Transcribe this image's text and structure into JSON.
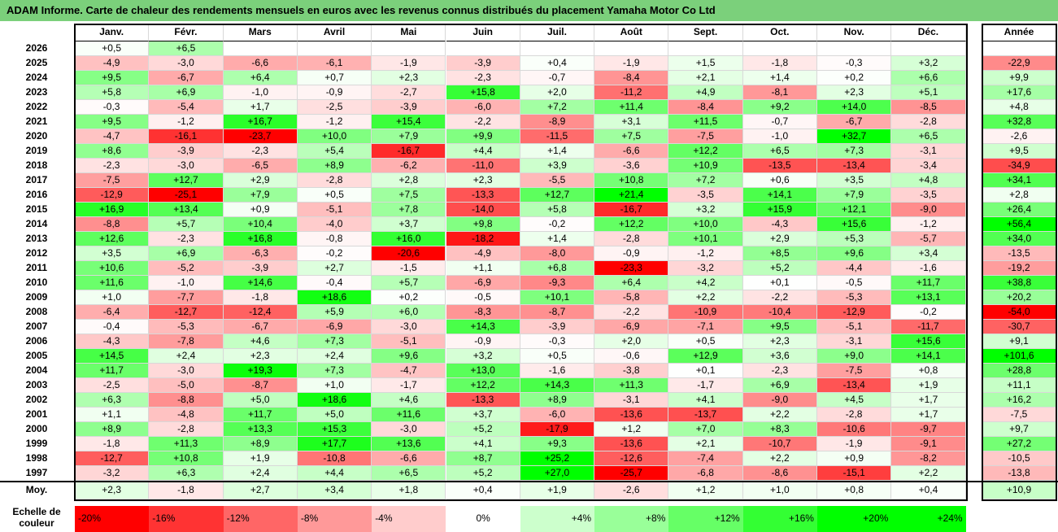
{
  "title": "ADAM Informe. Carte de chaleur des rendements mensuels en euros avec les revenus connus distribués du placement Yamaha Motor Co Ltd",
  "chart_data": {
    "type": "heatmap",
    "months": [
      "Janv.",
      "Févr.",
      "Mars",
      "Avril",
      "Mai",
      "Juin",
      "Juil.",
      "Août",
      "Sept.",
      "Oct.",
      "Nov.",
      "Déc."
    ],
    "year_label": "Année",
    "avg_label": "Moy.",
    "scale_label": "Echelle de couleur",
    "rows": [
      {
        "year": "2026",
        "values": [
          "+0,5",
          "+6,5",
          null,
          null,
          null,
          null,
          null,
          null,
          null,
          null,
          null,
          null
        ],
        "total": null
      },
      {
        "year": "2025",
        "values": [
          "-4,9",
          "-3,0",
          "-6,6",
          "-6,1",
          "-1,9",
          "-3,9",
          "+0,4",
          "-1,9",
          "+1,5",
          "-1,8",
          "-0,3",
          "+3,2"
        ],
        "total": "-22,9"
      },
      {
        "year": "2024",
        "values": [
          "+9,5",
          "-6,7",
          "+6,4",
          "+0,7",
          "+2,3",
          "-2,3",
          "-0,7",
          "-8,4",
          "+2,1",
          "+1,4",
          "+0,2",
          "+6,6"
        ],
        "total": "+9,9"
      },
      {
        "year": "2023",
        "values": [
          "+5,8",
          "+6,9",
          "-1,0",
          "-0,9",
          "-2,7",
          "+15,8",
          "+2,0",
          "-11,2",
          "+4,9",
          "-8,1",
          "+2,3",
          "+5,1"
        ],
        "total": "+17,6"
      },
      {
        "year": "2022",
        "values": [
          "-0,3",
          "-5,4",
          "+1,7",
          "-2,5",
          "-3,9",
          "-6,0",
          "+7,2",
          "+11,4",
          "-8,4",
          "+9,2",
          "+14,0",
          "-8,5"
        ],
        "total": "+4,8"
      },
      {
        "year": "2021",
        "values": [
          "+9,5",
          "-1,2",
          "+16,7",
          "-1,2",
          "+15,4",
          "-2,2",
          "-8,9",
          "+3,1",
          "+11,5",
          "-0,7",
          "-6,7",
          "-2,8"
        ],
        "total": "+32,8"
      },
      {
        "year": "2020",
        "values": [
          "-4,7",
          "-16,1",
          "-23,7",
          "+10,0",
          "+7,9",
          "+9,9",
          "-11,5",
          "+7,5",
          "-7,5",
          "-1,0",
          "+32,7",
          "+6,5"
        ],
        "total": "-2,6"
      },
      {
        "year": "2019",
        "values": [
          "+8,6",
          "-3,9",
          "-2,3",
          "+5,4",
          "-16,7",
          "+4,4",
          "+1,4",
          "-6,6",
          "+12,2",
          "+6,5",
          "+7,3",
          "-3,1"
        ],
        "total": "+9,5"
      },
      {
        "year": "2018",
        "values": [
          "-2,3",
          "-3,0",
          "-6,5",
          "+8,9",
          "-6,2",
          "-11,0",
          "+3,9",
          "-3,6",
          "+10,9",
          "-13,5",
          "-13,4",
          "-3,4"
        ],
        "total": "-34,9"
      },
      {
        "year": "2017",
        "values": [
          "-7,5",
          "+12,7",
          "+2,9",
          "-2,8",
          "+2,8",
          "+2,3",
          "-5,5",
          "+10,8",
          "+7,2",
          "+0,6",
          "+3,5",
          "+4,8"
        ],
        "total": "+34,1"
      },
      {
        "year": "2016",
        "values": [
          "-12,9",
          "-25,1",
          "+7,9",
          "+0,5",
          "+7,5",
          "-13,3",
          "+12,7",
          "+21,4",
          "-3,5",
          "+14,1",
          "+7,9",
          "-3,5"
        ],
        "total": "+2,8"
      },
      {
        "year": "2015",
        "values": [
          "+16,9",
          "+13,4",
          "+0,9",
          "-5,1",
          "+7,8",
          "-14,0",
          "+5,8",
          "-16,7",
          "+3,2",
          "+15,9",
          "+12,1",
          "-9,0"
        ],
        "total": "+26,4"
      },
      {
        "year": "2014",
        "values": [
          "-8,8",
          "+5,7",
          "+10,4",
          "-4,0",
          "+3,7",
          "+9,8",
          "-0,2",
          "+12,2",
          "+10,0",
          "-4,3",
          "+15,6",
          "-1,2"
        ],
        "total": "+56,4"
      },
      {
        "year": "2013",
        "values": [
          "+12,6",
          "-2,3",
          "+16,8",
          "-0,8",
          "+16,0",
          "-18,2",
          "+1,4",
          "-2,8",
          "+10,1",
          "+2,9",
          "+5,3",
          "-5,7"
        ],
        "total": "+34,0"
      },
      {
        "year": "2012",
        "values": [
          "+3,5",
          "+6,9",
          "-6,3",
          "-0,2",
          "-20,6",
          "-4,9",
          "-8,0",
          "-0,9",
          "-1,2",
          "+8,5",
          "+9,6",
          "+3,4"
        ],
        "total": "-13,5"
      },
      {
        "year": "2011",
        "values": [
          "+10,6",
          "-5,2",
          "-3,9",
          "+2,7",
          "-1,5",
          "+1,1",
          "+6,8",
          "-23,3",
          "-3,2",
          "+5,2",
          "-4,4",
          "-1,6"
        ],
        "total": "-19,2"
      },
      {
        "year": "2010",
        "values": [
          "+11,6",
          "-1,0",
          "+14,6",
          "-0,4",
          "+5,7",
          "-6,9",
          "-9,3",
          "+6,4",
          "+4,2",
          "+0,1",
          "-0,5",
          "+11,7"
        ],
        "total": "+38,8"
      },
      {
        "year": "2009",
        "values": [
          "+1,0",
          "-7,7",
          "-1,8",
          "+18,6",
          "+0,2",
          "-0,5",
          "+10,1",
          "-5,8",
          "+2,2",
          "-2,2",
          "-5,3",
          "+13,1"
        ],
        "total": "+20,2"
      },
      {
        "year": "2008",
        "values": [
          "-6,4",
          "-12,7",
          "-12,4",
          "+5,9",
          "+6,0",
          "-8,3",
          "-8,7",
          "-2,2",
          "-10,9",
          "-10,4",
          "-12,9",
          "-0,2"
        ],
        "total": "-54,0"
      },
      {
        "year": "2007",
        "values": [
          "-0,4",
          "-5,3",
          "-6,7",
          "-6,9",
          "-3,0",
          "+14,3",
          "-3,9",
          "-6,9",
          "-7,1",
          "+9,5",
          "-5,1",
          "-11,7"
        ],
        "total": "-30,7"
      },
      {
        "year": "2006",
        "values": [
          "-4,3",
          "-7,8",
          "+4,6",
          "+7,3",
          "-5,1",
          "-0,9",
          "-0,3",
          "+2,0",
          "+0,5",
          "+2,3",
          "-3,1",
          "+15,6"
        ],
        "total": "+9,1"
      },
      {
        "year": "2005",
        "values": [
          "+14,5",
          "+2,4",
          "+2,3",
          "+2,4",
          "+9,6",
          "+3,2",
          "+0,5",
          "-0,6",
          "+12,9",
          "+3,6",
          "+9,0",
          "+14,1"
        ],
        "total": "+101,6"
      },
      {
        "year": "2004",
        "values": [
          "+11,7",
          "-3,0",
          "+19,3",
          "+7,3",
          "-4,7",
          "+13,0",
          "-1,6",
          "-3,8",
          "+0,1",
          "-2,3",
          "-7,5",
          "+0,8"
        ],
        "total": "+28,8"
      },
      {
        "year": "2003",
        "values": [
          "-2,5",
          "-5,0",
          "-8,7",
          "+1,0",
          "-1,7",
          "+12,2",
          "+14,3",
          "+11,3",
          "-1,7",
          "+6,9",
          "-13,4",
          "+1,9"
        ],
        "total": "+11,1"
      },
      {
        "year": "2002",
        "values": [
          "+6,3",
          "-8,8",
          "+5,0",
          "+18,6",
          "+4,6",
          "-13,3",
          "+8,9",
          "-3,1",
          "+4,1",
          "-9,0",
          "+4,5",
          "+1,7"
        ],
        "total": "+16,2"
      },
      {
        "year": "2001",
        "values": [
          "+1,1",
          "-4,8",
          "+11,7",
          "+5,0",
          "+11,6",
          "+3,7",
          "-6,0",
          "-13,6",
          "-13,7",
          "+2,2",
          "-2,8",
          "+1,7"
        ],
        "total": "-7,5"
      },
      {
        "year": "2000",
        "values": [
          "+8,9",
          "-2,8",
          "+13,3",
          "+15,3",
          "-3,0",
          "+5,2",
          "-17,9",
          "+1,2",
          "+7,0",
          "+8,3",
          "-10,6",
          "-9,7"
        ],
        "total": "+9,7"
      },
      {
        "year": "1999",
        "values": [
          "-1,8",
          "+11,3",
          "+8,9",
          "+17,7",
          "+13,6",
          "+4,1",
          "+9,3",
          "-13,6",
          "+2,1",
          "-10,7",
          "-1,9",
          "-9,1"
        ],
        "total": "+27,2"
      },
      {
        "year": "1998",
        "values": [
          "-12,7",
          "+10,8",
          "+1,9",
          "-10,8",
          "-6,6",
          "+8,7",
          "+25,2",
          "-12,6",
          "-7,4",
          "+2,2",
          "+0,9",
          "-8,2"
        ],
        "total": "-10,5"
      },
      {
        "year": "1997",
        "values": [
          "-3,2",
          "+6,3",
          "+2,4",
          "+4,4",
          "+6,5",
          "+5,2",
          "+27,0",
          "-25,7",
          "-6,8",
          "-8,6",
          "-15,1",
          "+2,2"
        ],
        "total": "-13,8"
      }
    ],
    "averages": [
      "+2,3",
      "-1,8",
      "+2,7",
      "+3,4",
      "+1,8",
      "+0,4",
      "+1,9",
      "-2,6",
      "+1,2",
      "+1,0",
      "+0,8",
      "+0,4"
    ],
    "average_total": "+10,9",
    "scale": [
      "-20%",
      "-16%",
      "-12%",
      "-8%",
      "-4%",
      "0%",
      "+4%",
      "+8%",
      "+12%",
      "+16%",
      "+20%",
      "+24%"
    ]
  }
}
